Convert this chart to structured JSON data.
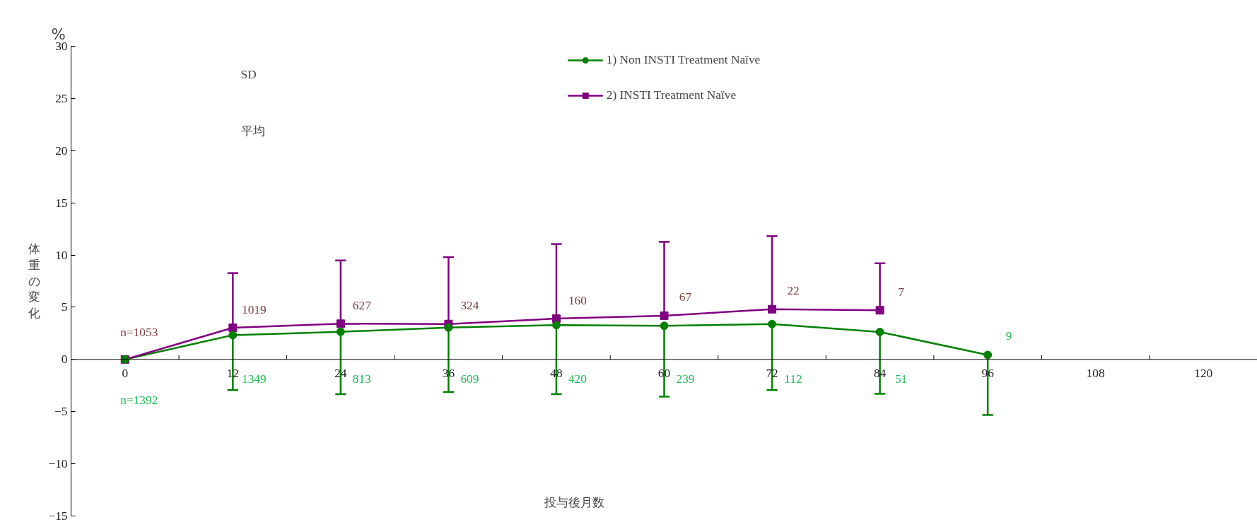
{
  "chart_data": {
    "type": "line",
    "ylabel": "体重の変化",
    "xlabel": "投与後月数",
    "x": [
      0,
      12,
      24,
      36,
      48,
      60,
      72,
      84,
      96
    ],
    "series": [
      {
        "name": "1) Non INSTI Treatment Naïve",
        "color": "#008000",
        "marker": "circle",
        "values": [
          0,
          2.33,
          2.65,
          3.05,
          3.29,
          3.22,
          3.39,
          2.63,
          0.43
        ],
        "errors": [
          null,
          [
            -2.94,
            2.33
          ],
          [
            -3.32,
            2.65
          ],
          [
            -3.12,
            3.05
          ],
          [
            -3.33,
            3.29
          ],
          [
            -3.57,
            3.22
          ],
          [
            -2.94,
            3.39
          ],
          [
            -3.29,
            2.63
          ],
          [
            -5.33,
            0.43
          ]
        ]
      },
      {
        "name": "2) INSTI Treatment Naïve",
        "color": "#800080",
        "marker": "square",
        "x": [
          0,
          12,
          24,
          36,
          48,
          60,
          72,
          84
        ],
        "values": [
          0,
          3.03,
          3.42,
          3.39,
          3.91,
          4.19,
          4.81,
          4.71
        ],
        "errors": [
          null,
          [
            3.03,
            8.27
          ],
          [
            3.42,
            9.48
          ],
          [
            3.39,
            9.8
          ],
          [
            3.91,
            11.05
          ],
          [
            4.19,
            11.26
          ],
          [
            4.81,
            11.81
          ],
          [
            4.71,
            9.21
          ]
        ]
      }
    ],
    "xlim": [
      -6,
      126
    ],
    "xticks": [
      0,
      {
        "value": 6,
        "label": null
      },
      12,
      {
        "value": 18,
        "label": null
      },
      24,
      {
        "value": 30,
        "label": null
      },
      36,
      {
        "value": 42,
        "label": null
      },
      48,
      {
        "value": 54,
        "label": null
      },
      60,
      {
        "value": 66,
        "label": null
      },
      72,
      {
        "value": 78,
        "label": null
      },
      84,
      {
        "value": 90,
        "label": null
      },
      96,
      {
        "value": 102,
        "label": null
      },
      108,
      {
        "value": 114,
        "label": null
      },
      120
    ],
    "ylim": [
      -15,
      30
    ],
    "yticks": [
      {
        "value": -15,
        "label": "−15"
      },
      {
        "value": -10,
        "label": "−10"
      },
      {
        "value": -5,
        "label": "−5"
      },
      0,
      5,
      10,
      15,
      20,
      25,
      30
    ],
    "grid": false,
    "legend": "top",
    "annotations": [
      "%",
      "SD",
      "平均",
      "n=1392",
      "1349",
      "813",
      "609",
      "420",
      "239",
      "112",
      "51",
      "9",
      "n=1053",
      "1019",
      "627",
      "324",
      "160",
      "67",
      "22",
      "7"
    ]
  }
}
